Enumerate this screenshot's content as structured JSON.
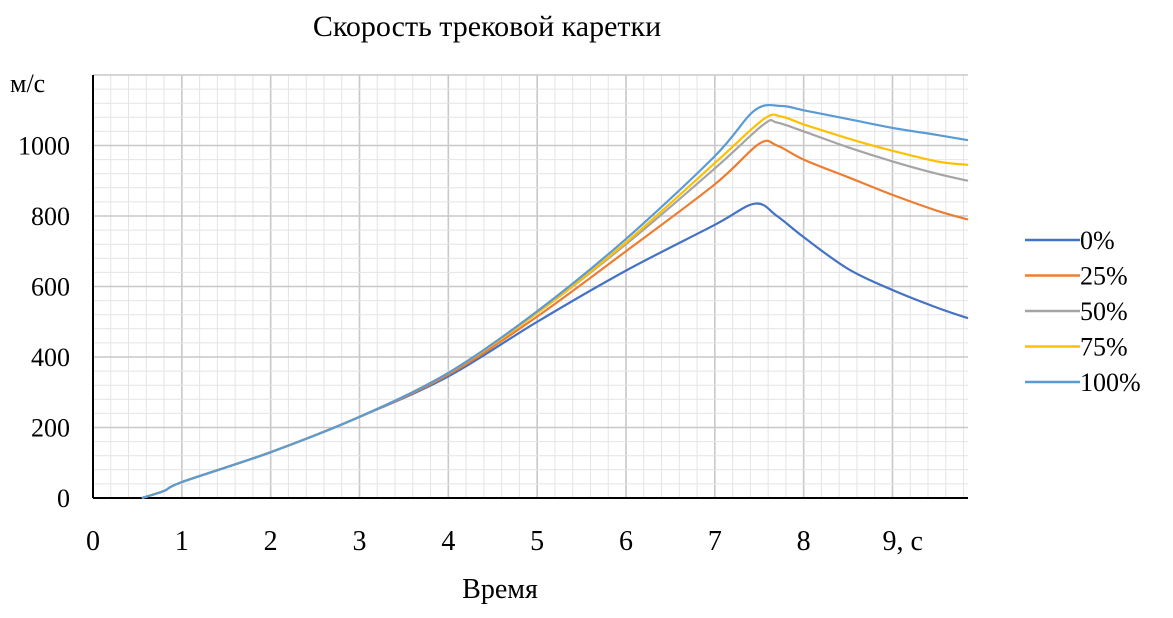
{
  "chart_data": {
    "type": "line",
    "title": "Скорость трековой каретки",
    "xlabel": "Время",
    "ylabel": "м/с",
    "xlim": [
      0,
      9.85
    ],
    "ylim": [
      0,
      1200
    ],
    "x_ticks": [
      "0",
      "1",
      "2",
      "3",
      "4",
      "5",
      "6",
      "7",
      "8",
      "9, с"
    ],
    "y_ticks": [
      "0",
      "200",
      "400",
      "600",
      "800",
      "1000"
    ],
    "grid": true,
    "legend_position": "right",
    "series": [
      {
        "name": "0%",
        "color": "#4472c4",
        "points": [
          [
            0.55,
            0
          ],
          [
            0.8,
            20
          ],
          [
            1,
            45
          ],
          [
            2,
            130
          ],
          [
            3,
            230
          ],
          [
            4,
            345
          ],
          [
            5,
            500
          ],
          [
            6,
            645
          ],
          [
            7,
            775
          ],
          [
            7.45,
            835
          ],
          [
            7.7,
            800
          ],
          [
            8,
            740
          ],
          [
            8.5,
            650
          ],
          [
            9,
            590
          ],
          [
            9.5,
            540
          ],
          [
            9.85,
            510
          ]
        ]
      },
      {
        "name": "25%",
        "color": "#ed7d31",
        "points": [
          [
            0.55,
            0
          ],
          [
            0.8,
            20
          ],
          [
            1,
            45
          ],
          [
            2,
            130
          ],
          [
            3,
            230
          ],
          [
            4,
            350
          ],
          [
            5,
            515
          ],
          [
            6,
            700
          ],
          [
            7,
            890
          ],
          [
            7.5,
            1005
          ],
          [
            7.7,
            1000
          ],
          [
            8,
            960
          ],
          [
            8.5,
            910
          ],
          [
            9,
            860
          ],
          [
            9.5,
            815
          ],
          [
            9.85,
            790
          ]
        ]
      },
      {
        "name": "50%",
        "color": "#a5a5a5",
        "points": [
          [
            0.55,
            0
          ],
          [
            0.8,
            20
          ],
          [
            1,
            45
          ],
          [
            2,
            130
          ],
          [
            3,
            230
          ],
          [
            4,
            355
          ],
          [
            5,
            525
          ],
          [
            6,
            720
          ],
          [
            7,
            935
          ],
          [
            7.55,
            1060
          ],
          [
            7.7,
            1065
          ],
          [
            8,
            1040
          ],
          [
            8.5,
            995
          ],
          [
            9,
            955
          ],
          [
            9.5,
            920
          ],
          [
            9.85,
            900
          ]
        ]
      },
      {
        "name": "75%",
        "color": "#ffc000",
        "points": [
          [
            0.55,
            0
          ],
          [
            0.8,
            20
          ],
          [
            1,
            45
          ],
          [
            2,
            130
          ],
          [
            3,
            230
          ],
          [
            4,
            355
          ],
          [
            5,
            525
          ],
          [
            6,
            725
          ],
          [
            7,
            950
          ],
          [
            7.55,
            1075
          ],
          [
            7.75,
            1082
          ],
          [
            8,
            1060
          ],
          [
            8.5,
            1020
          ],
          [
            9,
            985
          ],
          [
            9.5,
            955
          ],
          [
            9.85,
            945
          ]
        ]
      },
      {
        "name": "100%",
        "color": "#5b9bd5",
        "points": [
          [
            0.55,
            0
          ],
          [
            0.8,
            20
          ],
          [
            1,
            45
          ],
          [
            2,
            130
          ],
          [
            3,
            230
          ],
          [
            4,
            355
          ],
          [
            5,
            530
          ],
          [
            6,
            735
          ],
          [
            7,
            970
          ],
          [
            7.45,
            1100
          ],
          [
            7.75,
            1112
          ],
          [
            8,
            1100
          ],
          [
            8.5,
            1075
          ],
          [
            9,
            1050
          ],
          [
            9.5,
            1030
          ],
          [
            9.85,
            1015
          ]
        ]
      }
    ]
  }
}
